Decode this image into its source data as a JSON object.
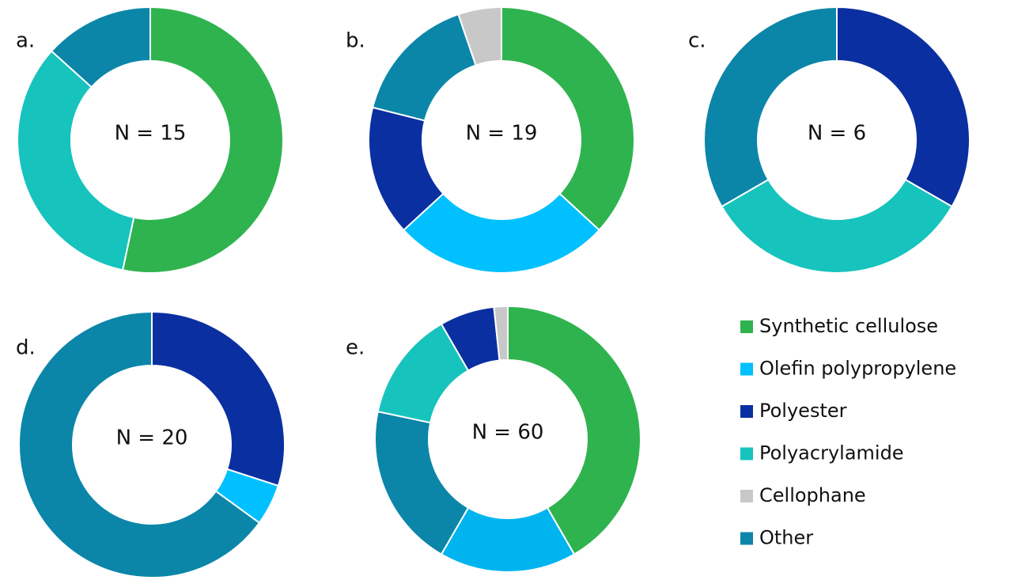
{
  "chart_data": [
    {
      "type": "pie",
      "label": "a.",
      "annotation": "N = 15",
      "donut": true,
      "slices": [
        {
          "value": 8,
          "color": "#2fb34f"
        },
        {
          "value": 5,
          "color": "#17c3bd"
        },
        {
          "value": 2,
          "color": "#0b86a8"
        }
      ]
    },
    {
      "type": "pie",
      "label": "b.",
      "annotation": "N = 19",
      "donut": true,
      "slices": [
        {
          "value": 7,
          "color": "#2fb34f"
        },
        {
          "value": 5,
          "color": "#00c0ff"
        },
        {
          "value": 3,
          "color": "#0a2fa0"
        },
        {
          "value": 3,
          "color": "#0b86a8"
        },
        {
          "value": 1,
          "color": "#c8c8c8"
        }
      ]
    },
    {
      "type": "pie",
      "label": "c.",
      "annotation": "N = 6",
      "donut": true,
      "slices": [
        {
          "value": 2,
          "color": "#0a2fa0"
        },
        {
          "value": 2,
          "color": "#17c3bd"
        },
        {
          "value": 2,
          "color": "#0b86a8"
        }
      ]
    },
    {
      "type": "pie",
      "label": "d.",
      "annotation": "N = 20",
      "donut": true,
      "slices": [
        {
          "value": 6,
          "color": "#0a2fa0"
        },
        {
          "value": 1,
          "color": "#00c0ff"
        },
        {
          "value": 13,
          "color": "#0b86a8"
        }
      ]
    },
    {
      "type": "pie",
      "label": "e.",
      "annotation": "N = 60",
      "donut": true,
      "slices": [
        {
          "value": 25,
          "color": "#2fb34f"
        },
        {
          "value": 10,
          "color": "#00b4f0"
        },
        {
          "value": 12,
          "color": "#0b86a8"
        },
        {
          "value": 8,
          "color": "#17c3bd"
        },
        {
          "value": 4,
          "color": "#0a2fa0"
        },
        {
          "value": 1,
          "color": "#c8c8c8"
        }
      ]
    }
  ],
  "legend": {
    "items": [
      {
        "name": "Synthetic cellulose",
        "color": "#2fb34f"
      },
      {
        "name": "Olefin polypropylene",
        "color": "#00c0ff"
      },
      {
        "name": "Polyester",
        "color": "#0a2fa0"
      },
      {
        "name": "Polyacrylamide",
        "color": "#17c3bd"
      },
      {
        "name": "Cellophane",
        "color": "#c8c8c8"
      },
      {
        "name": "Other",
        "color": "#0b86a8"
      }
    ]
  }
}
